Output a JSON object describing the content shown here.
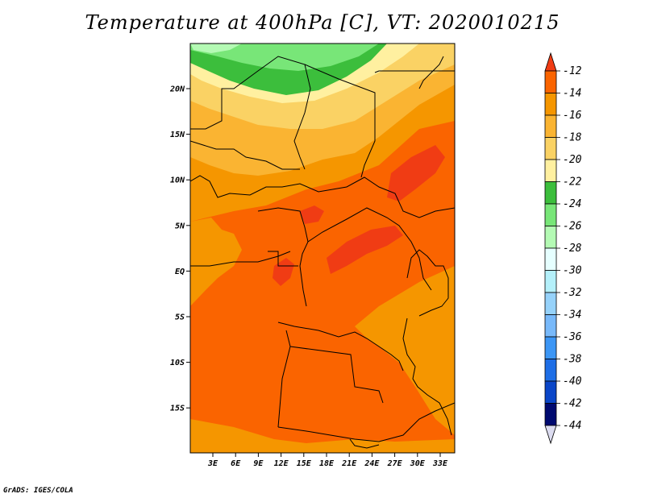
{
  "title": "Temperature at 400hPa [C], VT: 2020010215",
  "credit": "GrADS: IGES/COLA",
  "map": {
    "lon_ticks": [
      "3E",
      "6E",
      "9E",
      "12E",
      "15E",
      "18E",
      "21E",
      "24E",
      "27E",
      "30E",
      "33E"
    ],
    "lat_ticks": [
      "20N",
      "15N",
      "10N",
      "5N",
      "EQ",
      "5S",
      "10S",
      "15S"
    ]
  },
  "colorbar": {
    "labels": [
      "-12",
      "-14",
      "-16",
      "-18",
      "-20",
      "-22",
      "-24",
      "-26",
      "-28",
      "-30",
      "-32",
      "-34",
      "-36",
      "-38",
      "-40",
      "-42",
      "-44"
    ],
    "colors": [
      "#f03c14",
      "#fa6400",
      "#f59600",
      "#fab432",
      "#fad264",
      "#fff0a0",
      "#3cbe3c",
      "#78e678",
      "#b4fab4",
      "#e6ffff",
      "#b4f0fa",
      "#96d2fa",
      "#78b9fa",
      "#3c96f5",
      "#1e6ee6",
      "#0a46c8",
      "#000a70",
      "#dcdcf0"
    ]
  },
  "colors": {
    "frame": "#000000",
    "background": "#ffffff"
  }
}
